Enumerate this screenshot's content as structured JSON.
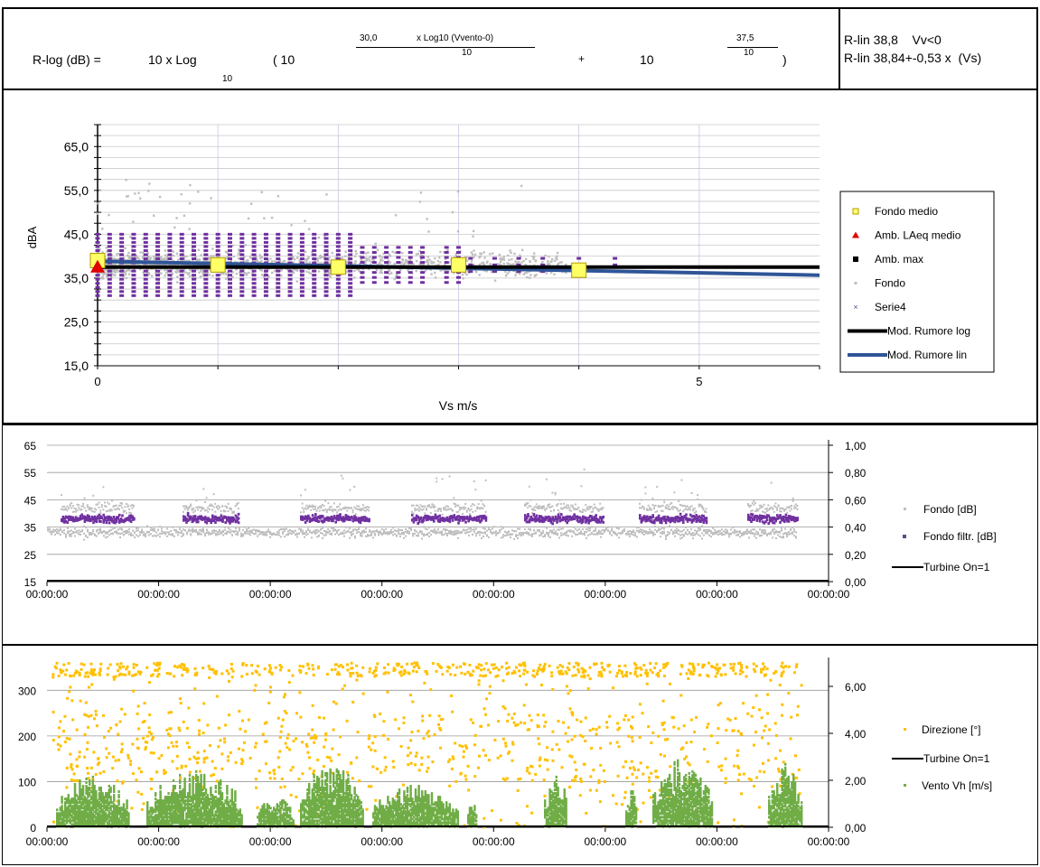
{
  "formula": {
    "lhs": "R-log (dB) =",
    "ten_log": "10 x Log",
    "log_base": "10",
    "paren_open": "( 10",
    "exp1_num_coef": "30,0",
    "exp1_num_expr": "x Log10 (Vvento-0)",
    "exp1_den": "10",
    "plus": "+",
    "ten2": "10",
    "exp2_num": "37,5",
    "exp2_den": "10",
    "paren_close": ")",
    "rlin_line1": "R-lin 38,8    Vv<0",
    "rlin_line2": "R-lin 38,84+-0,53 x  (Vs)"
  },
  "colors": {
    "purple": "#7030a0",
    "grey": "#bfbfbf",
    "yellow": "#ffff66",
    "yellow_edge": "#b59b00",
    "red": "#e00000",
    "navy": "#2f5597",
    "orange": "#ffc000",
    "green": "#70ad47"
  },
  "chart_data": [
    {
      "type": "scatter",
      "xlabel": "Vs m/s",
      "ylabel": "dBA",
      "xlim": [
        0,
        6
      ],
      "ylim": [
        15,
        70
      ],
      "yticks": [
        "65,0",
        "55,0",
        "45,0",
        "35,0",
        "25,0",
        "15,0"
      ],
      "xticks": [
        "0",
        "5"
      ],
      "grid": true,
      "legend_position": "right",
      "legend": [
        "Fondo medio",
        "Amb. LAeq medio",
        "Amb. max",
        "Fondo",
        "Serie4",
        "Mod. Rumore log",
        "Mod. Rumore lin"
      ],
      "series": [
        {
          "name": "Fondo medio",
          "x": [
            0,
            1,
            2,
            3,
            4
          ],
          "y": [
            39.0,
            38.0,
            37.5,
            38.0,
            36.8
          ]
        },
        {
          "name": "Amb. LAeq medio",
          "x": [
            0
          ],
          "y": [
            37.5
          ]
        },
        {
          "name": "Mod. Rumore log",
          "x": [
            0,
            6
          ],
          "y": [
            37.5,
            37.5
          ]
        },
        {
          "name": "Mod. Rumore lin",
          "x": [
            0,
            6
          ],
          "y": [
            38.84,
            35.66
          ]
        }
      ]
    },
    {
      "type": "scatter",
      "y_left_ticks": [
        "65",
        "55",
        "45",
        "35",
        "25",
        "15"
      ],
      "y_right_ticks": [
        "1,00",
        "0,80",
        "0,60",
        "0,40",
        "0,20",
        "0,00"
      ],
      "x_ticks": [
        "00:00:00",
        "00:00:00",
        "00:00:00",
        "00:00:00",
        "00:00:00",
        "00:00:00",
        "00:00:00",
        "00:00:00"
      ],
      "ylim": [
        15,
        65
      ],
      "y2lim": [
        0,
        1
      ],
      "grid": true,
      "legend_position": "right",
      "legend": [
        "Fondo [dB]",
        "Fondo filtr. [dB]",
        "Turbine On=1"
      ]
    },
    {
      "type": "scatter",
      "y_left_ticks": [
        "300",
        "200",
        "100",
        "0"
      ],
      "y_right_ticks": [
        "6,00",
        "4,00",
        "2,00",
        "0,00"
      ],
      "x_ticks": [
        "00:00:00",
        "00:00:00",
        "00:00:00",
        "00:00:00",
        "00:00:00",
        "00:00:00",
        "00:00:00",
        "00:00:00"
      ],
      "ylim": [
        0,
        360
      ],
      "y2lim": [
        0,
        7
      ],
      "grid": true,
      "legend_position": "right",
      "legend": [
        "Direzione [°]",
        "Turbine On=1",
        "Vento Vh [m/s]"
      ]
    }
  ]
}
